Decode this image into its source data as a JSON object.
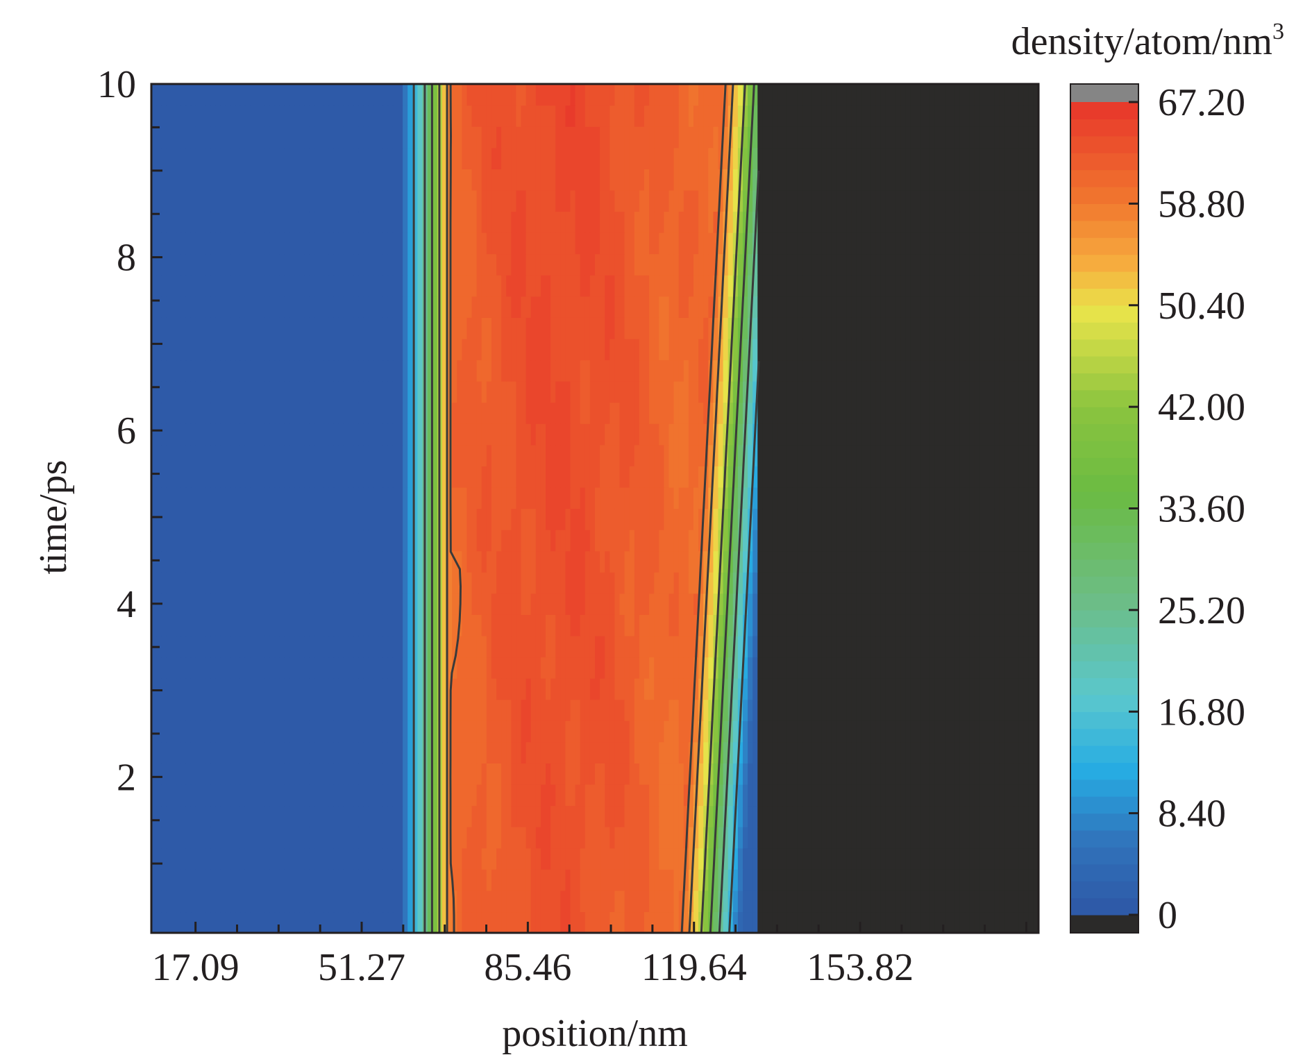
{
  "chart_data": {
    "type": "heatmap",
    "xlabel": "position/nm",
    "ylabel": "time/ps",
    "colorbar_label": "density/atom/nm",
    "colorbar_label_superscript": "3",
    "xlim": [
      8.0,
      190.5
    ],
    "ylim": [
      0.2,
      10.0
    ],
    "x_ticks": [
      17.09,
      51.27,
      85.46,
      119.64,
      153.82
    ],
    "x_tick_labels": [
      "17.09",
      "51.27",
      "85.46",
      "119.64",
      "153.82"
    ],
    "y_ticks": [
      2,
      4,
      6,
      8,
      10
    ],
    "y_tick_labels": [
      "2",
      "4",
      "6",
      "8",
      "10"
    ],
    "colorbar_ticks": [
      0,
      8.4,
      16.8,
      25.2,
      33.6,
      42.0,
      50.4,
      58.8,
      67.2
    ],
    "colorbar_tick_labels": [
      "0",
      "8.40",
      "16.80",
      "25.20",
      "33.60",
      "42.00",
      "50.40",
      "58.80",
      "67.20"
    ],
    "colorbar_range": [
      0,
      67.2
    ],
    "colorbar_levels": 48,
    "colorbar_below_color": "#2b2a29",
    "colorbar_above_color": "#858585",
    "colormap_stops": [
      {
        "value": 0,
        "color": "#2e57a6"
      },
      {
        "value": 6,
        "color": "#3073bb"
      },
      {
        "value": 12,
        "color": "#27ace3"
      },
      {
        "value": 18,
        "color": "#5ac7cd"
      },
      {
        "value": 26,
        "color": "#6cbd86"
      },
      {
        "value": 35,
        "color": "#6bbb42"
      },
      {
        "value": 42,
        "color": "#8bc43f"
      },
      {
        "value": 50,
        "color": "#eae44a"
      },
      {
        "value": 54,
        "color": "#f6ab3e"
      },
      {
        "value": 59,
        "color": "#f1772e"
      },
      {
        "value": 67.2,
        "color": "#e7352b"
      }
    ],
    "empty_region": {
      "x_from": 133.0,
      "color": "#2b2a29"
    },
    "density_profile": {
      "description_values": "density (atom/nm3) vs position at fixed time",
      "vacuum_left_until": 59.4,
      "ramp_left": [
        [
          59.4,
          2
        ],
        [
          61.5,
          12
        ],
        [
          63.5,
          20
        ],
        [
          65.0,
          30
        ],
        [
          66.5,
          40
        ],
        [
          68.0,
          50
        ],
        [
          69.5,
          59
        ]
      ],
      "plateau_start": 69.5,
      "front_width": 13.0,
      "front_t0": 116.5,
      "front_t10": 125.5,
      "front_levels": [
        62,
        56,
        50,
        40,
        30,
        20,
        10,
        2
      ]
    },
    "contour_levels": [
      14,
      25,
      35,
      45,
      55,
      60
    ]
  }
}
